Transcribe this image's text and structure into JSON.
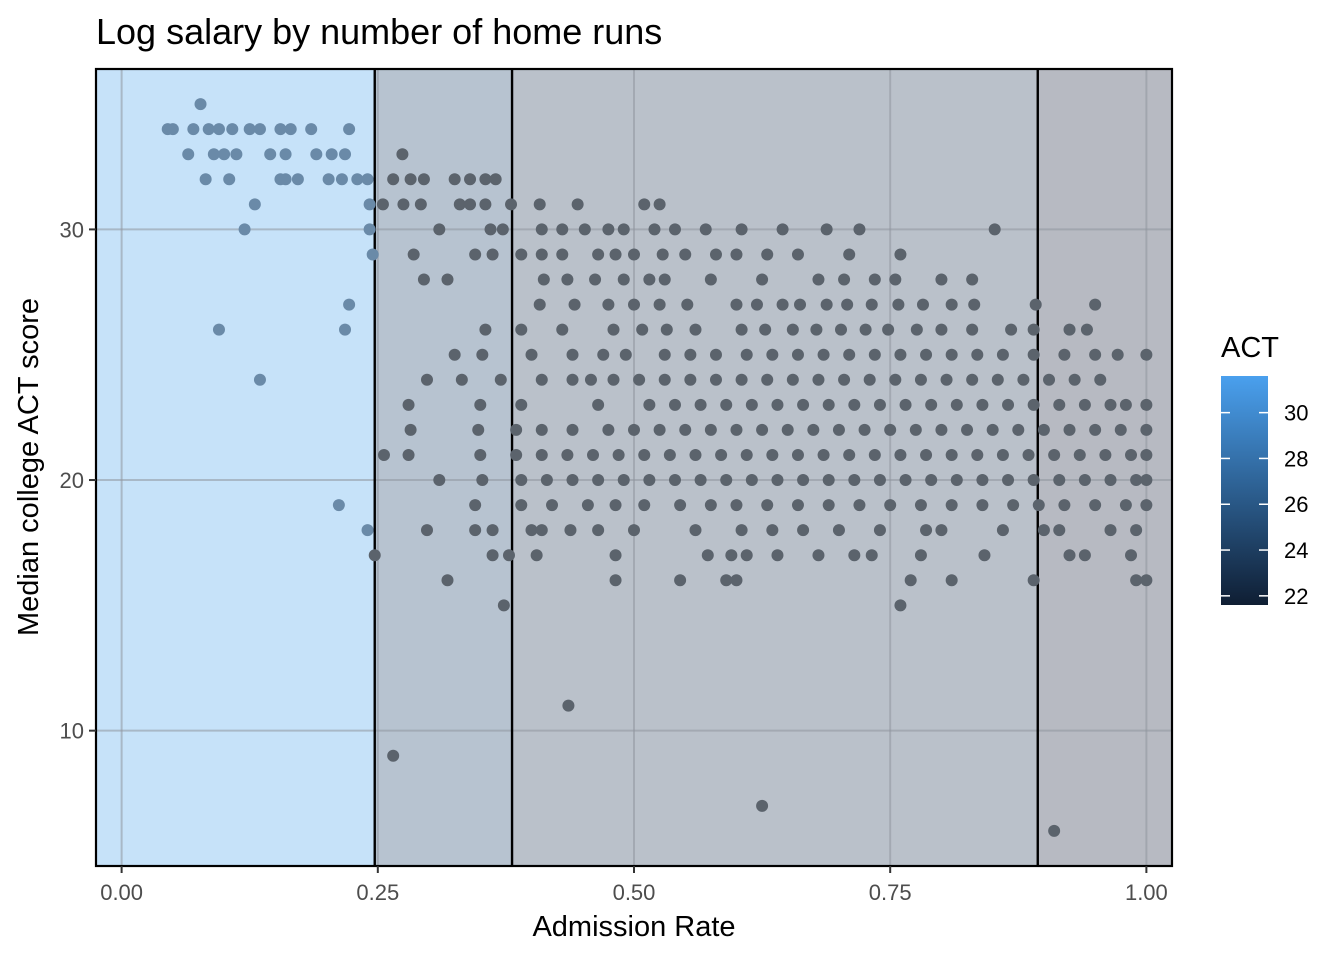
{
  "chart_data": {
    "type": "scatter",
    "title": "Log salary by number of home runs",
    "xlabel": "Admission Rate",
    "ylabel": "Median college ACT score",
    "xlim": [
      -0.025,
      1.025
    ],
    "ylim": [
      4.6,
      36.4
    ],
    "x_ticks": [
      0.0,
      0.25,
      0.5,
      0.75,
      1.0
    ],
    "x_tick_labels": [
      "0.00",
      "0.25",
      "0.50",
      "0.75",
      "1.00"
    ],
    "y_ticks": [
      10,
      20,
      30
    ],
    "y_tick_labels": [
      "10",
      "20",
      "30"
    ],
    "grid": true,
    "vertical_lines": [
      0.247,
      0.381,
      0.894
    ],
    "shaded_bands": [
      {
        "from": -0.025,
        "to": 0.247,
        "color": "#c6e2f9"
      },
      {
        "from": 0.247,
        "to": 0.381,
        "color": "#b7c3d0"
      },
      {
        "from": 0.381,
        "to": 0.894,
        "color": "#bac1ca"
      },
      {
        "from": 0.894,
        "to": 1.025,
        "color": "#b7bac2"
      }
    ],
    "point_colors": {
      "selective": "#6a8aa8",
      "other": "#5b636c"
    },
    "legend": {
      "title": "ACT",
      "position": "right",
      "labels": [
        "30",
        "28",
        "26",
        "24",
        "22"
      ],
      "values": [
        30,
        28,
        26,
        24,
        22
      ],
      "range": [
        21.6,
        31.6
      ],
      "color_low": "#0f1e33",
      "color_high": "#4aa0ee"
    },
    "points": [
      [
        0.077,
        35
      ],
      [
        0.045,
        34
      ],
      [
        0.05,
        34
      ],
      [
        0.07,
        34
      ],
      [
        0.085,
        34
      ],
      [
        0.095,
        34
      ],
      [
        0.108,
        34
      ],
      [
        0.125,
        34
      ],
      [
        0.135,
        34
      ],
      [
        0.155,
        34
      ],
      [
        0.165,
        34
      ],
      [
        0.185,
        34
      ],
      [
        0.222,
        34
      ],
      [
        0.065,
        33
      ],
      [
        0.09,
        33
      ],
      [
        0.1,
        33
      ],
      [
        0.112,
        33
      ],
      [
        0.145,
        33
      ],
      [
        0.16,
        33
      ],
      [
        0.19,
        33
      ],
      [
        0.205,
        33
      ],
      [
        0.218,
        33
      ],
      [
        0.274,
        33
      ],
      [
        0.082,
        32
      ],
      [
        0.105,
        32
      ],
      [
        0.155,
        32
      ],
      [
        0.16,
        32
      ],
      [
        0.172,
        32
      ],
      [
        0.202,
        32
      ],
      [
        0.215,
        32
      ],
      [
        0.23,
        32
      ],
      [
        0.24,
        32
      ],
      [
        0.265,
        32
      ],
      [
        0.282,
        32
      ],
      [
        0.295,
        32
      ],
      [
        0.325,
        32
      ],
      [
        0.34,
        32
      ],
      [
        0.355,
        32
      ],
      [
        0.365,
        32
      ],
      [
        0.13,
        31
      ],
      [
        0.242,
        31
      ],
      [
        0.255,
        31
      ],
      [
        0.275,
        31
      ],
      [
        0.292,
        31
      ],
      [
        0.33,
        31
      ],
      [
        0.34,
        31
      ],
      [
        0.355,
        31
      ],
      [
        0.38,
        31
      ],
      [
        0.408,
        31
      ],
      [
        0.445,
        31
      ],
      [
        0.51,
        31
      ],
      [
        0.525,
        31
      ],
      [
        0.12,
        30
      ],
      [
        0.242,
        30
      ],
      [
        0.31,
        30
      ],
      [
        0.36,
        30
      ],
      [
        0.372,
        30
      ],
      [
        0.41,
        30
      ],
      [
        0.43,
        30
      ],
      [
        0.452,
        30
      ],
      [
        0.475,
        30
      ],
      [
        0.49,
        30
      ],
      [
        0.52,
        30
      ],
      [
        0.54,
        30
      ],
      [
        0.57,
        30
      ],
      [
        0.605,
        30
      ],
      [
        0.645,
        30
      ],
      [
        0.688,
        30
      ],
      [
        0.72,
        30
      ],
      [
        0.852,
        30
      ],
      [
        0.245,
        29
      ],
      [
        0.285,
        29
      ],
      [
        0.345,
        29
      ],
      [
        0.362,
        29
      ],
      [
        0.39,
        29
      ],
      [
        0.41,
        29
      ],
      [
        0.43,
        29
      ],
      [
        0.465,
        29
      ],
      [
        0.482,
        29
      ],
      [
        0.5,
        29
      ],
      [
        0.528,
        29
      ],
      [
        0.55,
        29
      ],
      [
        0.58,
        29
      ],
      [
        0.6,
        29
      ],
      [
        0.63,
        29
      ],
      [
        0.66,
        29
      ],
      [
        0.71,
        29
      ],
      [
        0.76,
        29
      ],
      [
        0.295,
        28
      ],
      [
        0.318,
        28
      ],
      [
        0.412,
        28
      ],
      [
        0.435,
        28
      ],
      [
        0.462,
        28
      ],
      [
        0.49,
        28
      ],
      [
        0.515,
        28
      ],
      [
        0.53,
        28
      ],
      [
        0.575,
        28
      ],
      [
        0.625,
        28
      ],
      [
        0.68,
        28
      ],
      [
        0.705,
        28
      ],
      [
        0.735,
        28
      ],
      [
        0.755,
        28
      ],
      [
        0.8,
        28
      ],
      [
        0.83,
        28
      ],
      [
        0.222,
        27
      ],
      [
        0.408,
        27
      ],
      [
        0.442,
        27
      ],
      [
        0.475,
        27
      ],
      [
        0.5,
        27
      ],
      [
        0.525,
        27
      ],
      [
        0.552,
        27
      ],
      [
        0.6,
        27
      ],
      [
        0.62,
        27
      ],
      [
        0.645,
        27
      ],
      [
        0.662,
        27
      ],
      [
        0.688,
        27
      ],
      [
        0.708,
        27
      ],
      [
        0.732,
        27
      ],
      [
        0.758,
        27
      ],
      [
        0.782,
        27
      ],
      [
        0.81,
        27
      ],
      [
        0.832,
        27
      ],
      [
        0.892,
        27
      ],
      [
        0.95,
        27
      ],
      [
        0.095,
        26
      ],
      [
        0.218,
        26
      ],
      [
        0.355,
        26
      ],
      [
        0.39,
        26
      ],
      [
        0.43,
        26
      ],
      [
        0.48,
        26
      ],
      [
        0.508,
        26
      ],
      [
        0.532,
        26
      ],
      [
        0.56,
        26
      ],
      [
        0.605,
        26
      ],
      [
        0.628,
        26
      ],
      [
        0.655,
        26
      ],
      [
        0.678,
        26
      ],
      [
        0.702,
        26
      ],
      [
        0.726,
        26
      ],
      [
        0.748,
        26
      ],
      [
        0.776,
        26
      ],
      [
        0.8,
        26
      ],
      [
        0.83,
        26
      ],
      [
        0.868,
        26
      ],
      [
        0.89,
        26
      ],
      [
        0.925,
        26
      ],
      [
        0.942,
        26
      ],
      [
        0.325,
        25
      ],
      [
        0.352,
        25
      ],
      [
        0.4,
        25
      ],
      [
        0.44,
        25
      ],
      [
        0.47,
        25
      ],
      [
        0.492,
        25
      ],
      [
        0.53,
        25
      ],
      [
        0.555,
        25
      ],
      [
        0.58,
        25
      ],
      [
        0.61,
        25
      ],
      [
        0.635,
        25
      ],
      [
        0.66,
        25
      ],
      [
        0.685,
        25
      ],
      [
        0.71,
        25
      ],
      [
        0.735,
        25
      ],
      [
        0.76,
        25
      ],
      [
        0.785,
        25
      ],
      [
        0.81,
        25
      ],
      [
        0.835,
        25
      ],
      [
        0.86,
        25
      ],
      [
        0.89,
        25
      ],
      [
        0.92,
        25
      ],
      [
        0.95,
        25
      ],
      [
        0.972,
        25
      ],
      [
        1.0,
        25
      ],
      [
        0.135,
        24
      ],
      [
        0.298,
        24
      ],
      [
        0.332,
        24
      ],
      [
        0.37,
        24
      ],
      [
        0.41,
        24
      ],
      [
        0.44,
        24
      ],
      [
        0.458,
        24
      ],
      [
        0.48,
        24
      ],
      [
        0.505,
        24
      ],
      [
        0.53,
        24
      ],
      [
        0.555,
        24
      ],
      [
        0.58,
        24
      ],
      [
        0.605,
        24
      ],
      [
        0.63,
        24
      ],
      [
        0.655,
        24
      ],
      [
        0.68,
        24
      ],
      [
        0.705,
        24
      ],
      [
        0.73,
        24
      ],
      [
        0.755,
        24
      ],
      [
        0.78,
        24
      ],
      [
        0.805,
        24
      ],
      [
        0.83,
        24
      ],
      [
        0.855,
        24
      ],
      [
        0.88,
        24
      ],
      [
        0.905,
        24
      ],
      [
        0.93,
        24
      ],
      [
        0.955,
        24
      ],
      [
        0.28,
        23
      ],
      [
        0.35,
        23
      ],
      [
        0.39,
        23
      ],
      [
        0.465,
        23
      ],
      [
        0.515,
        23
      ],
      [
        0.54,
        23
      ],
      [
        0.565,
        23
      ],
      [
        0.59,
        23
      ],
      [
        0.615,
        23
      ],
      [
        0.64,
        23
      ],
      [
        0.665,
        23
      ],
      [
        0.69,
        23
      ],
      [
        0.715,
        23
      ],
      [
        0.74,
        23
      ],
      [
        0.765,
        23
      ],
      [
        0.79,
        23
      ],
      [
        0.815,
        23
      ],
      [
        0.84,
        23
      ],
      [
        0.865,
        23
      ],
      [
        0.89,
        23
      ],
      [
        0.915,
        23
      ],
      [
        0.94,
        23
      ],
      [
        0.965,
        23
      ],
      [
        0.98,
        23
      ],
      [
        1.0,
        23
      ],
      [
        0.282,
        22
      ],
      [
        0.348,
        22
      ],
      [
        0.385,
        22
      ],
      [
        0.41,
        22
      ],
      [
        0.44,
        22
      ],
      [
        0.475,
        22
      ],
      [
        0.5,
        22
      ],
      [
        0.525,
        22
      ],
      [
        0.55,
        22
      ],
      [
        0.575,
        22
      ],
      [
        0.6,
        22
      ],
      [
        0.625,
        22
      ],
      [
        0.65,
        22
      ],
      [
        0.675,
        22
      ],
      [
        0.7,
        22
      ],
      [
        0.725,
        22
      ],
      [
        0.75,
        22
      ],
      [
        0.775,
        22
      ],
      [
        0.8,
        22
      ],
      [
        0.825,
        22
      ],
      [
        0.85,
        22
      ],
      [
        0.875,
        22
      ],
      [
        0.9,
        22
      ],
      [
        0.925,
        22
      ],
      [
        0.95,
        22
      ],
      [
        0.975,
        22
      ],
      [
        1.0,
        22
      ],
      [
        0.256,
        21
      ],
      [
        0.28,
        21
      ],
      [
        0.35,
        21
      ],
      [
        0.385,
        21
      ],
      [
        0.41,
        21
      ],
      [
        0.435,
        21
      ],
      [
        0.46,
        21
      ],
      [
        0.485,
        21
      ],
      [
        0.51,
        21
      ],
      [
        0.535,
        21
      ],
      [
        0.56,
        21
      ],
      [
        0.585,
        21
      ],
      [
        0.61,
        21
      ],
      [
        0.635,
        21
      ],
      [
        0.66,
        21
      ],
      [
        0.685,
        21
      ],
      [
        0.71,
        21
      ],
      [
        0.735,
        21
      ],
      [
        0.76,
        21
      ],
      [
        0.785,
        21
      ],
      [
        0.81,
        21
      ],
      [
        0.835,
        21
      ],
      [
        0.86,
        21
      ],
      [
        0.885,
        21
      ],
      [
        0.91,
        21
      ],
      [
        0.935,
        21
      ],
      [
        0.96,
        21
      ],
      [
        0.985,
        21
      ],
      [
        1.0,
        21
      ],
      [
        0.31,
        20
      ],
      [
        0.352,
        20
      ],
      [
        0.39,
        20
      ],
      [
        0.415,
        20
      ],
      [
        0.44,
        20
      ],
      [
        0.465,
        20
      ],
      [
        0.49,
        20
      ],
      [
        0.515,
        20
      ],
      [
        0.54,
        20
      ],
      [
        0.565,
        20
      ],
      [
        0.59,
        20
      ],
      [
        0.615,
        20
      ],
      [
        0.64,
        20
      ],
      [
        0.665,
        20
      ],
      [
        0.69,
        20
      ],
      [
        0.715,
        20
      ],
      [
        0.74,
        20
      ],
      [
        0.765,
        20
      ],
      [
        0.79,
        20
      ],
      [
        0.815,
        20
      ],
      [
        0.84,
        20
      ],
      [
        0.865,
        20
      ],
      [
        0.89,
        20
      ],
      [
        0.915,
        20
      ],
      [
        0.94,
        20
      ],
      [
        0.965,
        20
      ],
      [
        0.99,
        20
      ],
      [
        1.0,
        20
      ],
      [
        0.212,
        19
      ],
      [
        0.345,
        19
      ],
      [
        0.39,
        19
      ],
      [
        0.42,
        19
      ],
      [
        0.455,
        19
      ],
      [
        0.482,
        19
      ],
      [
        0.51,
        19
      ],
      [
        0.545,
        19
      ],
      [
        0.575,
        19
      ],
      [
        0.6,
        19
      ],
      [
        0.63,
        19
      ],
      [
        0.66,
        19
      ],
      [
        0.69,
        19
      ],
      [
        0.72,
        19
      ],
      [
        0.75,
        19
      ],
      [
        0.78,
        19
      ],
      [
        0.81,
        19
      ],
      [
        0.84,
        19
      ],
      [
        0.87,
        19
      ],
      [
        0.895,
        19
      ],
      [
        0.92,
        19
      ],
      [
        0.95,
        19
      ],
      [
        0.98,
        19
      ],
      [
        1.0,
        19
      ],
      [
        0.24,
        18
      ],
      [
        0.298,
        18
      ],
      [
        0.345,
        18
      ],
      [
        0.362,
        18
      ],
      [
        0.4,
        18
      ],
      [
        0.41,
        18
      ],
      [
        0.438,
        18
      ],
      [
        0.465,
        18
      ],
      [
        0.5,
        18
      ],
      [
        0.56,
        18
      ],
      [
        0.605,
        18
      ],
      [
        0.635,
        18
      ],
      [
        0.665,
        18
      ],
      [
        0.7,
        18
      ],
      [
        0.74,
        18
      ],
      [
        0.785,
        18
      ],
      [
        0.8,
        18
      ],
      [
        0.86,
        18
      ],
      [
        0.9,
        18
      ],
      [
        0.915,
        18
      ],
      [
        0.965,
        18
      ],
      [
        0.99,
        18
      ],
      [
        0.247,
        17
      ],
      [
        0.362,
        17
      ],
      [
        0.378,
        17
      ],
      [
        0.405,
        17
      ],
      [
        0.482,
        17
      ],
      [
        0.572,
        17
      ],
      [
        0.595,
        17
      ],
      [
        0.61,
        17
      ],
      [
        0.64,
        17
      ],
      [
        0.68,
        17
      ],
      [
        0.715,
        17
      ],
      [
        0.732,
        17
      ],
      [
        0.78,
        17
      ],
      [
        0.842,
        17
      ],
      [
        0.925,
        17
      ],
      [
        0.94,
        17
      ],
      [
        0.985,
        17
      ],
      [
        0.318,
        16
      ],
      [
        0.482,
        16
      ],
      [
        0.545,
        16
      ],
      [
        0.59,
        16
      ],
      [
        0.6,
        16
      ],
      [
        0.77,
        16
      ],
      [
        0.81,
        16
      ],
      [
        0.89,
        16
      ],
      [
        0.99,
        16
      ],
      [
        1.0,
        16
      ],
      [
        0.373,
        15
      ],
      [
        0.76,
        15
      ],
      [
        0.436,
        11
      ],
      [
        0.265,
        9
      ],
      [
        0.625,
        7
      ],
      [
        0.91,
        6
      ]
    ]
  }
}
